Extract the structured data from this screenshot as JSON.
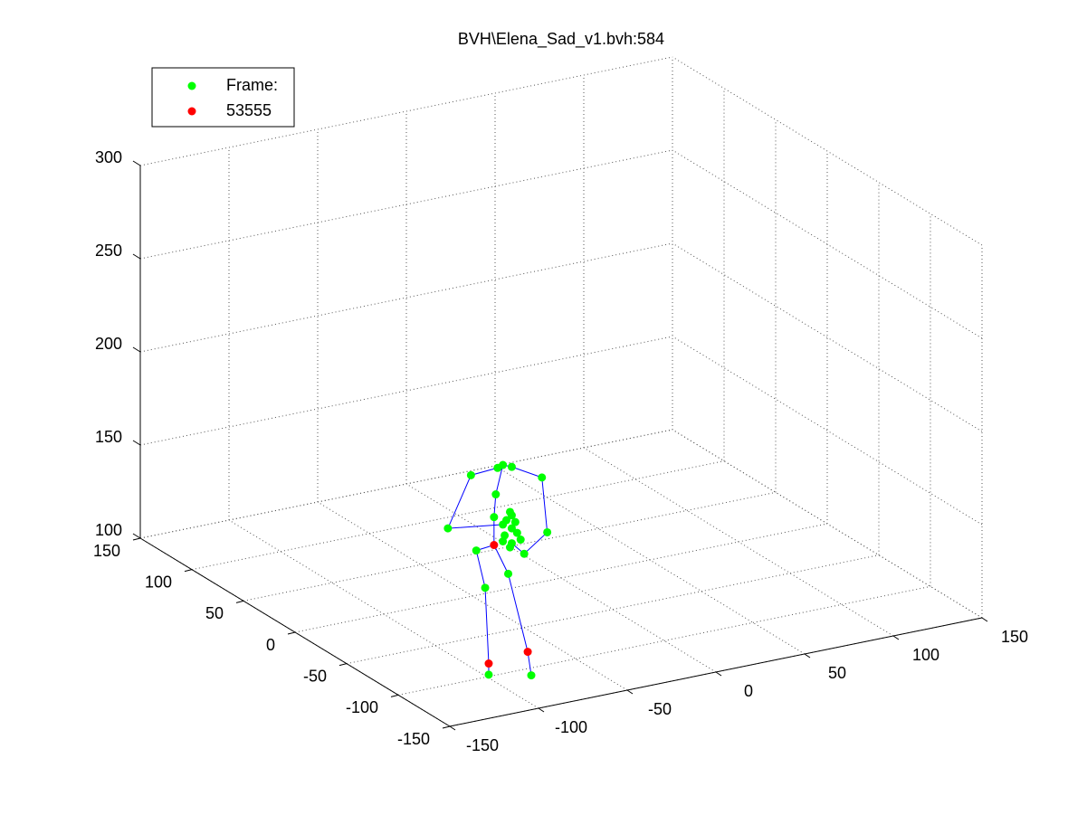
{
  "chart_data": {
    "type": "scatter3d",
    "title": "BVH\\Elena_Sad_v1.bvh:584",
    "xlim": [
      -150,
      150
    ],
    "ylim": [
      -150,
      150
    ],
    "zlim": [
      100,
      300
    ],
    "xticks": [
      -150,
      -100,
      -50,
      0,
      50,
      100,
      150
    ],
    "yticks": [
      -150,
      -100,
      -50,
      0,
      50,
      100,
      150
    ],
    "zticks": [
      100,
      150,
      200,
      250,
      300
    ],
    "grid": true,
    "legend": "northwest",
    "series": [
      {
        "type": "line",
        "color": "#0000ff",
        "x": [
          -94,
          -109,
          -122,
          -91,
          null,
          -86,
          -69,
          -66,
          -79,
          -86,
          null,
          -94,
          -91,
          -86,
          null,
          -91,
          -95,
          -96,
          -96,
          null,
          -96,
          -106,
          -101,
          -99,
          -99,
          null,
          -96,
          -88,
          -77,
          -75
        ],
        "y": [
          -100,
          -100,
          -100,
          -100,
          null,
          -100,
          -100,
          -100,
          -100,
          -100,
          null,
          -100,
          -100,
          -100,
          null,
          -100,
          -100,
          -100,
          -100,
          null,
          -100,
          -100,
          -100,
          -100,
          -100,
          null,
          -100,
          -100,
          -100,
          -100
        ],
        "z": [
          211,
          210,
          184,
          180,
          null,
          210,
          201,
          171,
          162,
          169,
          null,
          211,
          212,
          210,
          null,
          212,
          197,
          185,
          170,
          null,
          170,
          169,
          148,
          107,
          101,
          null,
          170,
          153,
          109,
          96
        ]
      },
      {
        "type": "scatter",
        "name": "Frame:",
        "color": "#00ff00",
        "x": [
          -91,
          -94,
          -86,
          -109,
          -69,
          -95,
          -96,
          -122,
          -66,
          -79,
          -106,
          -88,
          -101,
          -99,
          -75,
          -87,
          -86,
          -89,
          -84,
          -91,
          -86,
          -83,
          -90,
          -91,
          -86,
          -81,
          -87
        ],
        "y": [
          -100,
          -100,
          -100,
          -100,
          -100,
          -100,
          -100,
          -100,
          -100,
          -100,
          -100,
          -100,
          -100,
          -100,
          -100,
          -100,
          -100,
          -100,
          -100,
          -100,
          -100,
          -100,
          -100,
          -100,
          -100,
          -100,
          -100
        ],
        "z": [
          212,
          211,
          210,
          210,
          201,
          197,
          185,
          184,
          171,
          162,
          169,
          153,
          148,
          101,
          96,
          186,
          184,
          182,
          180,
          180,
          177,
          174,
          174,
          171,
          169,
          170,
          167
        ]
      },
      {
        "type": "scatter",
        "name": "53555",
        "color": "#ff0000",
        "x": [
          -96,
          -99,
          -77
        ],
        "y": [
          -100,
          -100,
          -100
        ],
        "z": [
          170,
          107,
          109
        ]
      }
    ]
  }
}
